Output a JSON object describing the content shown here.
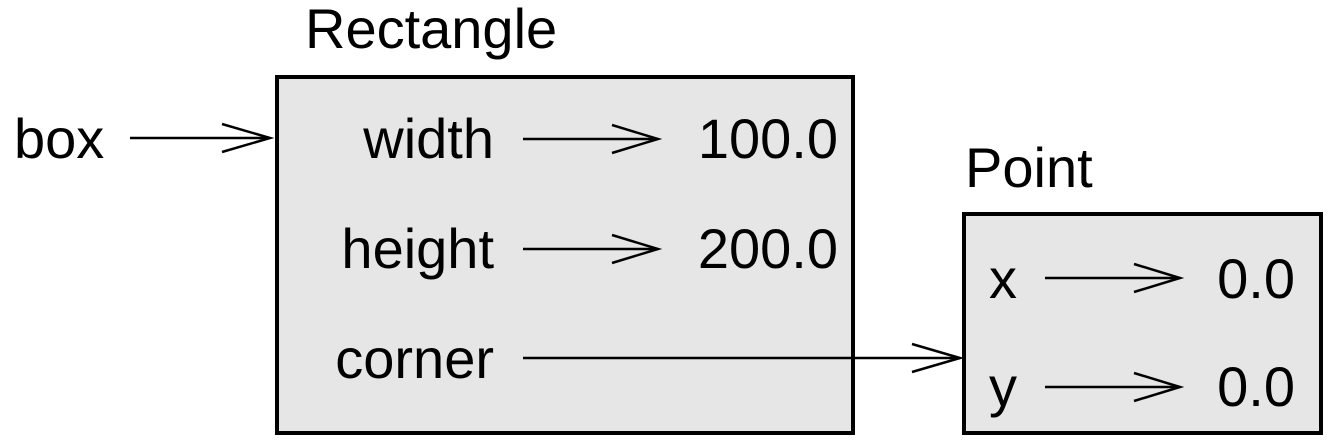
{
  "variable": {
    "name": "box"
  },
  "rectangle": {
    "type_name": "Rectangle",
    "attributes": [
      {
        "name": "width",
        "value": "100.0"
      },
      {
        "name": "height",
        "value": "200.0"
      },
      {
        "name": "corner",
        "value": ""
      }
    ]
  },
  "point": {
    "type_name": "Point",
    "attributes": [
      {
        "name": "x",
        "value": "0.0"
      },
      {
        "name": "y",
        "value": "0.0"
      }
    ]
  },
  "colors": {
    "frame_fill": "#e6e6e6",
    "stroke": "#000000",
    "text": "#000000"
  }
}
